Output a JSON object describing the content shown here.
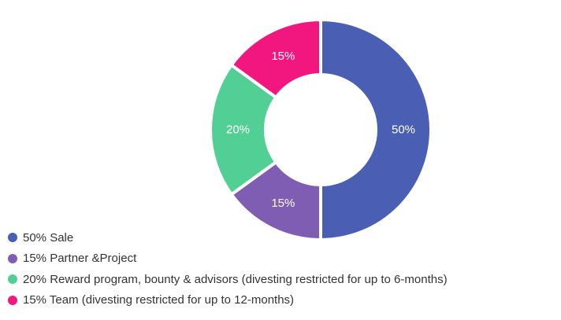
{
  "chart_data": {
    "type": "pie",
    "categories": [
      "Sale",
      "Partner &Project",
      "Reward program, bounty & advisors (divesting restricted for up to 6-months)",
      "Team (divesting restricted for up to 12-months)"
    ],
    "values": [
      50,
      15,
      20,
      15
    ],
    "slice_labels": [
      "50%",
      "15%",
      "20%",
      "15%"
    ],
    "colors": [
      "#4a5fb4",
      "#7f5db3",
      "#52cf94",
      "#f1177f"
    ],
    "donut": true,
    "legend_position": "bottom-left",
    "legend": [
      {
        "label": "50% Sale",
        "color": "#4a5fb4"
      },
      {
        "label": "15% Partner &Project",
        "color": "#7f5db3"
      },
      {
        "label": "20% Reward program, bounty & advisors (divesting restricted for up to 6-months)",
        "color": "#52cf94"
      },
      {
        "label": "15% Team (divesting restricted for up to 12-months)",
        "color": "#f1177f"
      }
    ]
  }
}
